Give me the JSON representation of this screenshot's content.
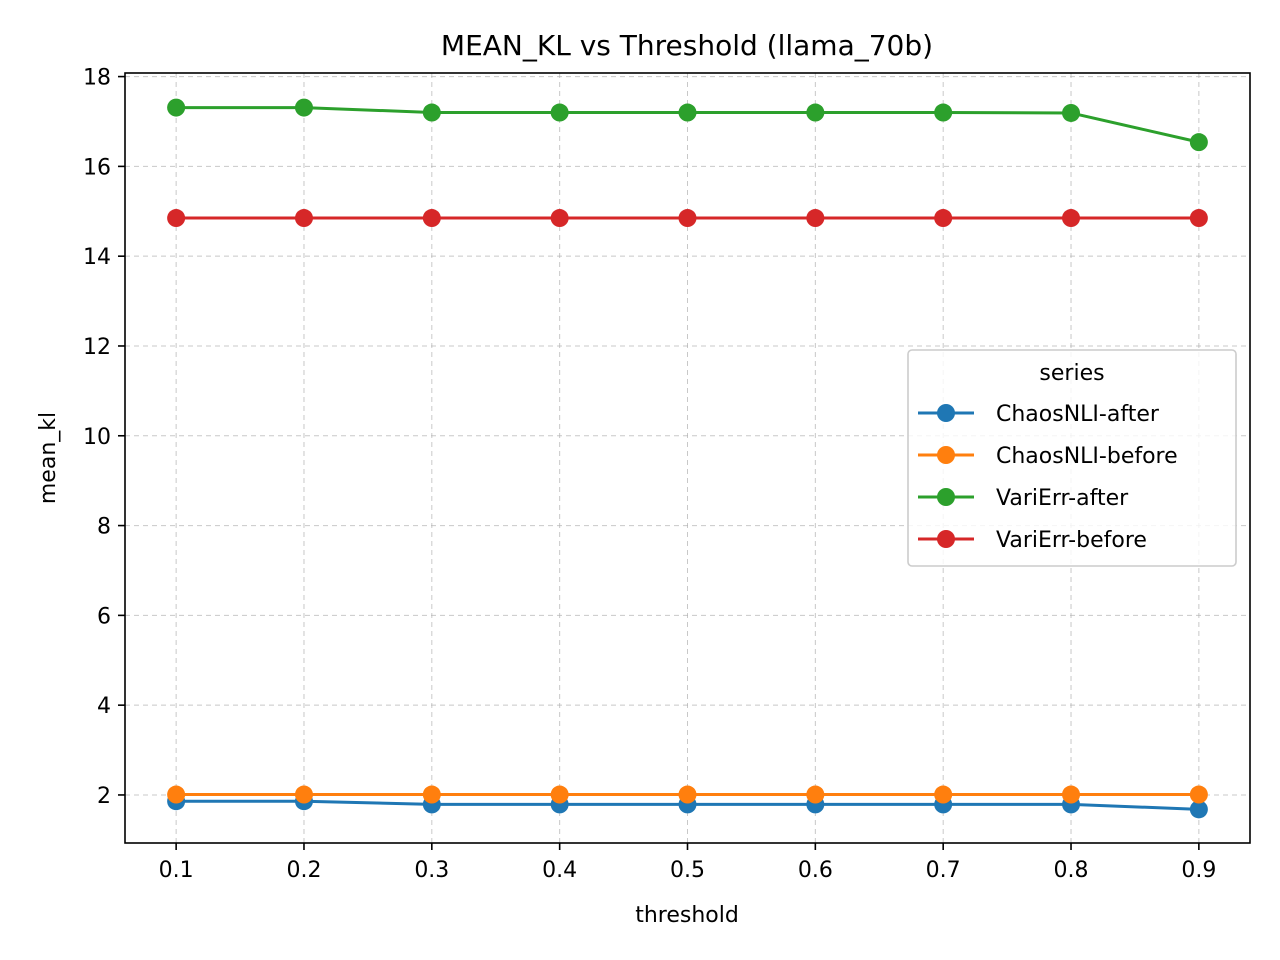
{
  "chart_data": {
    "type": "line",
    "title": "MEAN_KL vs Threshold (llama_70b)",
    "xlabel": "threshold",
    "ylabel": "mean_kl",
    "x": [
      0.1,
      0.2,
      0.3,
      0.4,
      0.5,
      0.6,
      0.7,
      0.8,
      0.9
    ],
    "x_tick_labels": [
      "0.1",
      "0.2",
      "0.3",
      "0.4",
      "0.5",
      "0.6",
      "0.7",
      "0.8",
      "0.9"
    ],
    "xlim": [
      0.06,
      0.94
    ],
    "ylim": [
      0.93,
      18.08
    ],
    "y_ticks": [
      2,
      4,
      6,
      8,
      10,
      12,
      14,
      16,
      18
    ],
    "y_tick_labels": [
      "2",
      "4",
      "6",
      "8",
      "10",
      "12",
      "14",
      "16",
      "18"
    ],
    "grid": true,
    "legend": {
      "title": "series",
      "placement": "center-right"
    },
    "series": [
      {
        "name": "ChaosNLI-after",
        "color": "#1f77b4",
        "values": [
          1.86,
          1.86,
          1.79,
          1.79,
          1.79,
          1.79,
          1.79,
          1.79,
          1.68
        ]
      },
      {
        "name": "ChaosNLI-before",
        "color": "#ff7f0e",
        "values": [
          2.01,
          2.01,
          2.01,
          2.01,
          2.01,
          2.01,
          2.01,
          2.01,
          2.01
        ]
      },
      {
        "name": "VariErr-after",
        "color": "#2ca02c",
        "values": [
          17.31,
          17.31,
          17.2,
          17.2,
          17.2,
          17.2,
          17.2,
          17.19,
          16.54
        ]
      },
      {
        "name": "VariErr-before",
        "color": "#d62728",
        "values": [
          14.85,
          14.85,
          14.85,
          14.85,
          14.85,
          14.85,
          14.85,
          14.85,
          14.85
        ]
      }
    ]
  }
}
